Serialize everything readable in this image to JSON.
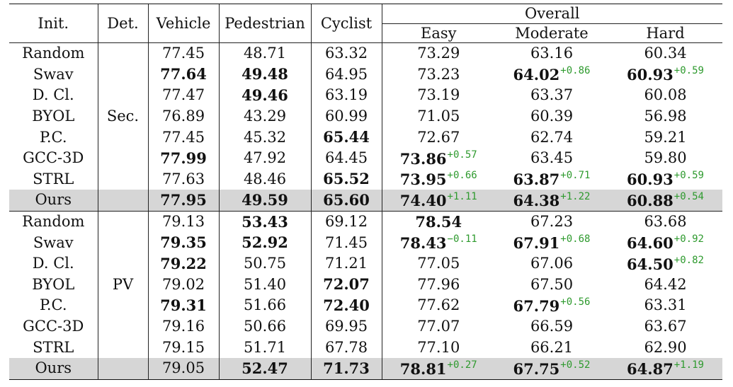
{
  "headers": {
    "init": "Init.",
    "det": "Det.",
    "vehicle": "Vehicle",
    "pedestrian": "Pedestrian",
    "cyclist": "Cyclist",
    "overall": "Overall",
    "easy": "Easy",
    "moderate": "Moderate",
    "hard": "Hard"
  },
  "groups": [
    {
      "det": "Sec.",
      "rows": [
        {
          "init": "Random",
          "vehicle": {
            "v": "77.45"
          },
          "pedestrian": {
            "v": "48.71"
          },
          "cyclist": {
            "v": "63.32"
          },
          "easy": {
            "v": "73.29"
          },
          "moderate": {
            "v": "63.16"
          },
          "hard": {
            "v": "60.34"
          }
        },
        {
          "init": "Swav",
          "vehicle": {
            "v": "77.64",
            "b": true
          },
          "pedestrian": {
            "v": "49.48",
            "b": true
          },
          "cyclist": {
            "v": "64.95"
          },
          "easy": {
            "v": "73.23"
          },
          "moderate": {
            "v": "64.02",
            "b": true,
            "d": "+0.86"
          },
          "hard": {
            "v": "60.93",
            "b": true,
            "d": "+0.59"
          }
        },
        {
          "init": "D. Cl.",
          "vehicle": {
            "v": "77.47"
          },
          "pedestrian": {
            "v": "49.46",
            "b": true
          },
          "cyclist": {
            "v": "63.19"
          },
          "easy": {
            "v": "73.19"
          },
          "moderate": {
            "v": "63.37"
          },
          "hard": {
            "v": "60.08"
          }
        },
        {
          "init": "BYOL",
          "vehicle": {
            "v": "76.89"
          },
          "pedestrian": {
            "v": "43.29"
          },
          "cyclist": {
            "v": "60.99"
          },
          "easy": {
            "v": "71.05"
          },
          "moderate": {
            "v": "60.39"
          },
          "hard": {
            "v": "56.98"
          }
        },
        {
          "init": "P.C.",
          "vehicle": {
            "v": "77.45"
          },
          "pedestrian": {
            "v": "45.32"
          },
          "cyclist": {
            "v": "65.44",
            "b": true
          },
          "easy": {
            "v": "72.67"
          },
          "moderate": {
            "v": "62.74"
          },
          "hard": {
            "v": "59.21"
          }
        },
        {
          "init": "GCC-3D",
          "vehicle": {
            "v": "77.99",
            "b": true
          },
          "pedestrian": {
            "v": "47.92"
          },
          "cyclist": {
            "v": "64.45"
          },
          "easy": {
            "v": "73.86",
            "b": true,
            "d": "+0.57"
          },
          "moderate": {
            "v": "63.45"
          },
          "hard": {
            "v": "59.80"
          }
        },
        {
          "init": "STRL",
          "vehicle": {
            "v": "77.63"
          },
          "pedestrian": {
            "v": "48.46"
          },
          "cyclist": {
            "v": "65.52",
            "b": true
          },
          "easy": {
            "v": "73.95",
            "b": true,
            "d": "+0.66"
          },
          "moderate": {
            "v": "63.87",
            "b": true,
            "d": "+0.71"
          },
          "hard": {
            "v": "60.93",
            "b": true,
            "d": "+0.59"
          }
        },
        {
          "init": "Ours",
          "hl": true,
          "vehicle": {
            "v": "77.95",
            "b": true
          },
          "pedestrian": {
            "v": "49.59",
            "b": true
          },
          "cyclist": {
            "v": "65.60",
            "b": true
          },
          "easy": {
            "v": "74.40",
            "b": true,
            "d": "+1.11"
          },
          "moderate": {
            "v": "64.38",
            "b": true,
            "d": "+1.22"
          },
          "hard": {
            "v": "60.88",
            "b": true,
            "d": "+0.54"
          }
        }
      ]
    },
    {
      "det": "PV",
      "rows": [
        {
          "init": "Random",
          "vehicle": {
            "v": "79.13"
          },
          "pedestrian": {
            "v": "53.43",
            "b": true
          },
          "cyclist": {
            "v": "69.12"
          },
          "easy": {
            "v": "78.54",
            "b": true
          },
          "moderate": {
            "v": "67.23"
          },
          "hard": {
            "v": "63.68"
          }
        },
        {
          "init": "Swav",
          "vehicle": {
            "v": "79.35",
            "b": true
          },
          "pedestrian": {
            "v": "52.92",
            "b": true
          },
          "cyclist": {
            "v": "71.45"
          },
          "easy": {
            "v": "78.43",
            "b": true,
            "d": "−0.11"
          },
          "moderate": {
            "v": "67.91",
            "b": true,
            "d": "+0.68"
          },
          "hard": {
            "v": "64.60",
            "b": true,
            "d": "+0.92"
          }
        },
        {
          "init": "D. Cl.",
          "vehicle": {
            "v": "79.22",
            "b": true
          },
          "pedestrian": {
            "v": "50.75"
          },
          "cyclist": {
            "v": "71.21"
          },
          "easy": {
            "v": "77.05"
          },
          "moderate": {
            "v": "67.06"
          },
          "hard": {
            "v": "64.50",
            "b": true,
            "d": "+0.82"
          }
        },
        {
          "init": "BYOL",
          "vehicle": {
            "v": "79.02"
          },
          "pedestrian": {
            "v": "51.40"
          },
          "cyclist": {
            "v": "72.07",
            "b": true
          },
          "easy": {
            "v": "77.96"
          },
          "moderate": {
            "v": "67.50"
          },
          "hard": {
            "v": "64.42"
          }
        },
        {
          "init": "P.C.",
          "vehicle": {
            "v": "79.31",
            "b": true
          },
          "pedestrian": {
            "v": "51.66"
          },
          "cyclist": {
            "v": "72.40",
            "b": true
          },
          "easy": {
            "v": "77.62"
          },
          "moderate": {
            "v": "67.79",
            "b": true,
            "d": "+0.56"
          },
          "hard": {
            "v": "63.31"
          }
        },
        {
          "init": "GCC-3D",
          "vehicle": {
            "v": "79.16"
          },
          "pedestrian": {
            "v": "50.66"
          },
          "cyclist": {
            "v": "69.95"
          },
          "easy": {
            "v": "77.07"
          },
          "moderate": {
            "v": "66.59"
          },
          "hard": {
            "v": "63.67"
          }
        },
        {
          "init": "STRL",
          "vehicle": {
            "v": "79.15"
          },
          "pedestrian": {
            "v": "51.71"
          },
          "cyclist": {
            "v": "67.78"
          },
          "easy": {
            "v": "77.10"
          },
          "moderate": {
            "v": "66.21"
          },
          "hard": {
            "v": "62.90"
          }
        },
        {
          "init": "Ours",
          "hl": true,
          "vehicle": {
            "v": "79.05"
          },
          "pedestrian": {
            "v": "52.47",
            "b": true
          },
          "cyclist": {
            "v": "71.73",
            "b": true
          },
          "easy": {
            "v": "78.81",
            "b": true,
            "d": "+0.27"
          },
          "moderate": {
            "v": "67.75",
            "b": true,
            "d": "+0.52"
          },
          "hard": {
            "v": "64.87",
            "b": true,
            "d": "+1.19"
          }
        }
      ]
    }
  ],
  "colors": {
    "delta": "#2e9a2e",
    "highlight": "#d6d6d6"
  }
}
